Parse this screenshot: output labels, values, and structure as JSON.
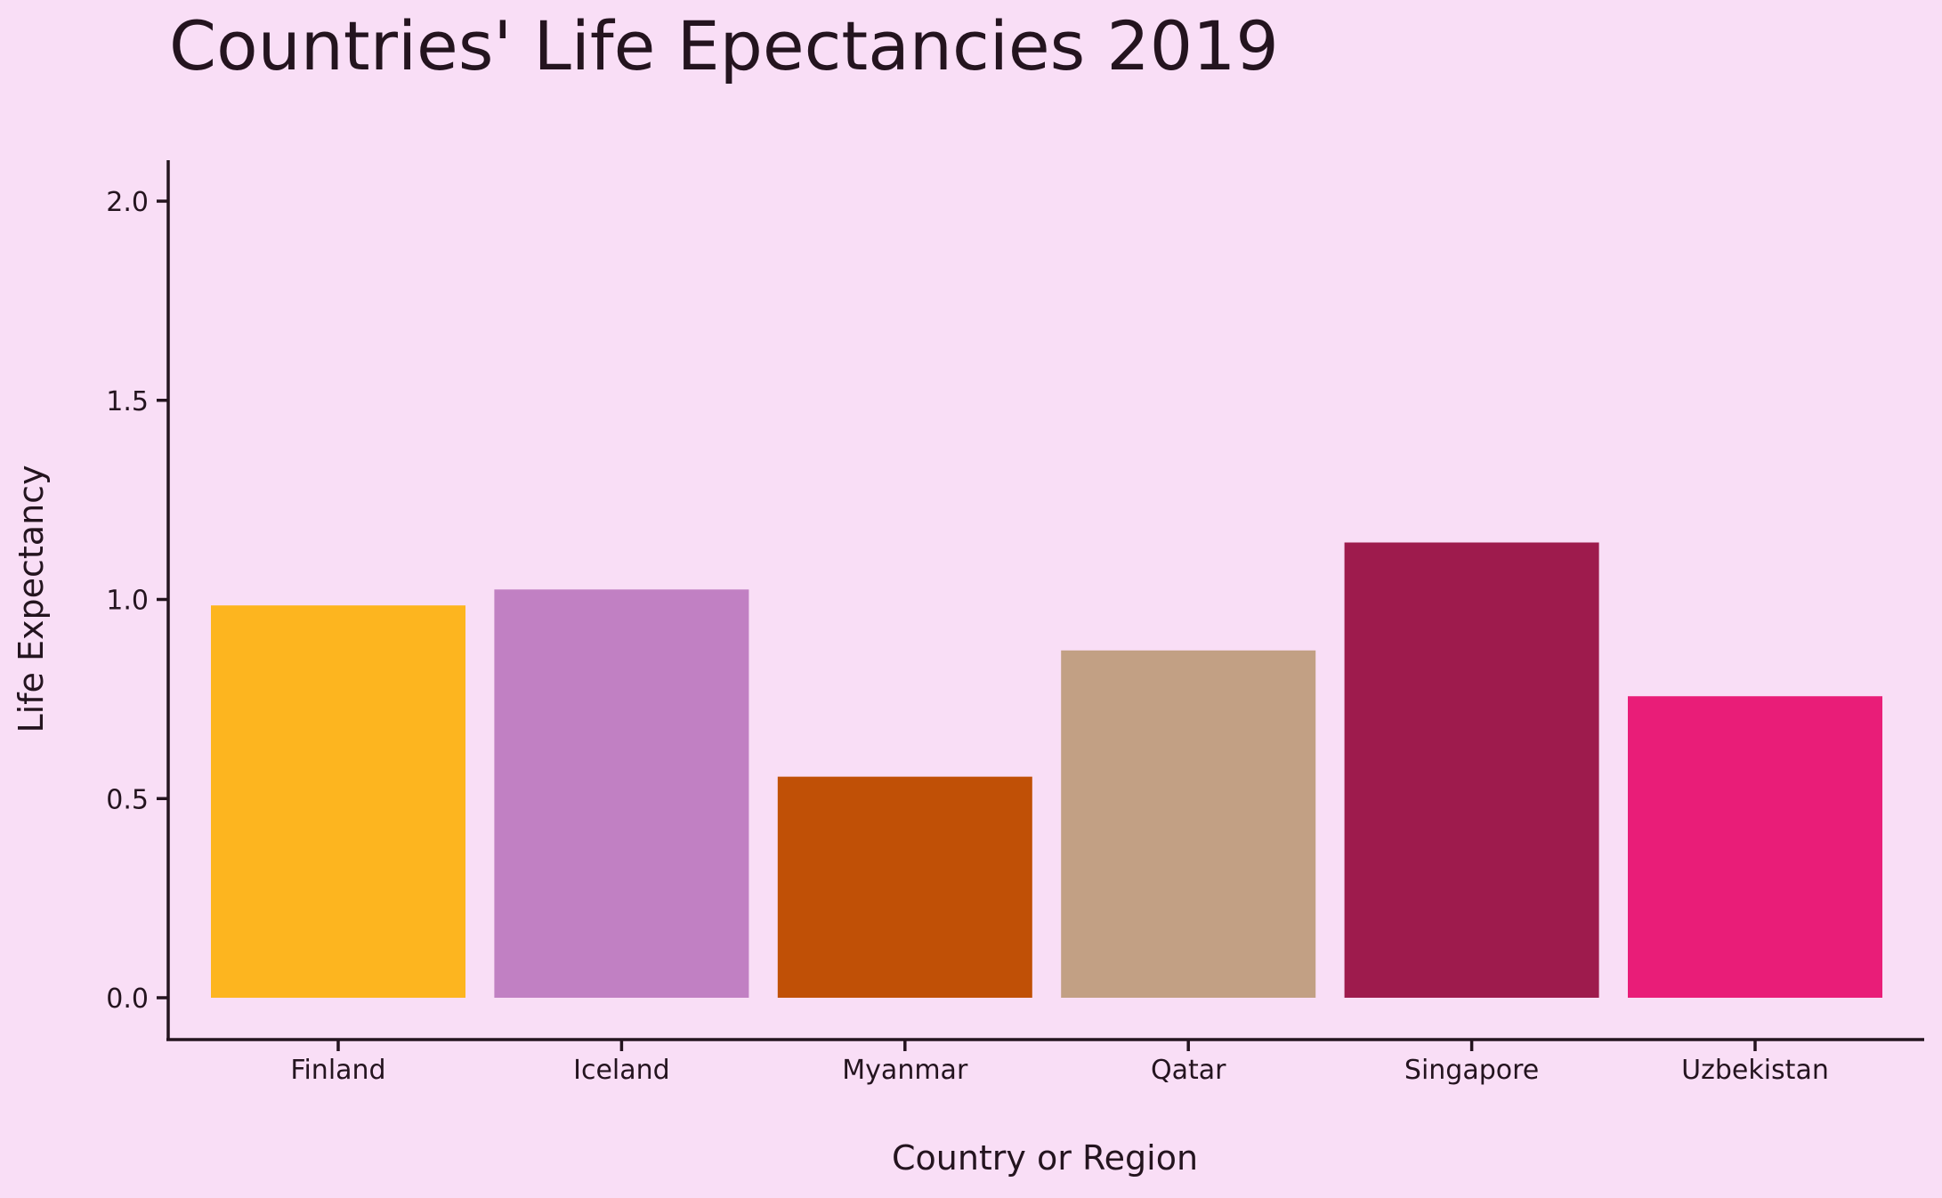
{
  "chart_data": {
    "type": "bar",
    "title": "Countries' Life Epectancies 2019",
    "xlabel": "Country or Region",
    "ylabel": "Life Expectancy",
    "categories": [
      "Finland",
      "Iceland",
      "Myanmar",
      "Qatar",
      "Singapore",
      "Uzbekistan"
    ],
    "values": [
      0.985,
      1.025,
      0.555,
      0.872,
      1.143,
      0.757
    ],
    "colors": [
      "#fdb51f",
      "#c180c3",
      "#c05006",
      "#c2a084",
      "#9e1b4d",
      "#e91d78"
    ],
    "ylim": [
      -0.1,
      2.1
    ],
    "yticks": [
      "0.0",
      "0.5",
      "1.0",
      "1.5",
      "2.0"
    ],
    "ytick_values": [
      0,
      0.5,
      1.0,
      1.5,
      2.0
    ],
    "grid": false,
    "legend": "none",
    "background": "#f9def6",
    "text_color": "#24141f"
  }
}
